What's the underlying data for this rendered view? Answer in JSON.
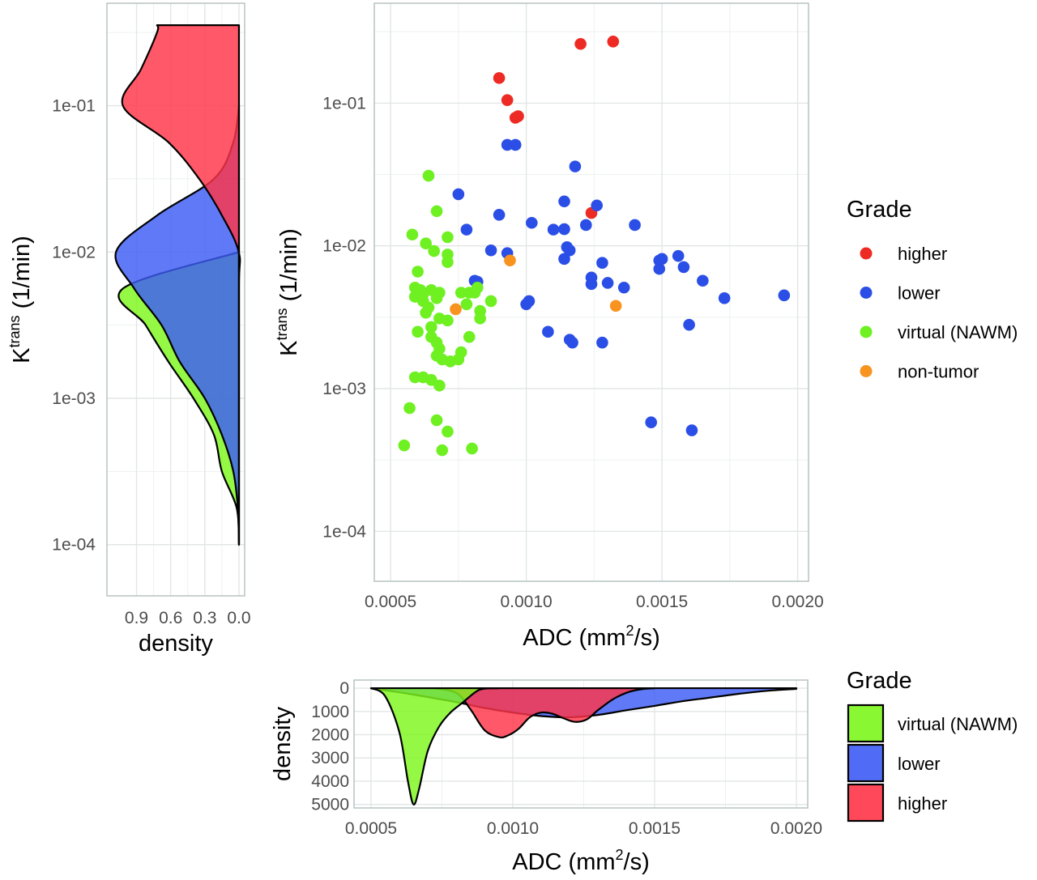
{
  "colors": {
    "higher": "#ee2a24",
    "lower": "#2b4fe6",
    "virtual": "#6ef021",
    "non_tumor": "#f7931e",
    "higher_fill": "#ff3548",
    "lower_fill": "#3d5cf5",
    "virtual_fill": "#7cf71c",
    "grid": "#e3e6e6",
    "panel_border": "#b8c2c2"
  },
  "chart_data": [
    {
      "type": "scatter",
      "xlabel": "ADC (mm",
      "xlabel_sup": "2",
      "xlabel_tail": "/s)",
      "ylabel": "K",
      "ylabel_sup": "trans",
      "ylabel_tail": " (1/min)",
      "xlim": [
        0.00044,
        0.00204
      ],
      "ylim_log10": [
        -4.35,
        -0.3
      ],
      "x_ticks": [
        0.0005,
        0.001,
        0.0015,
        0.002
      ],
      "x_tick_labels": [
        "0.0005",
        "0.0010",
        "0.0015",
        "0.0020"
      ],
      "y_ticks": [
        0.1,
        0.01,
        0.001,
        0.0001
      ],
      "y_tick_labels": [
        "1e-01",
        "1e-02",
        "1e-03",
        "1e-04"
      ],
      "grid": true,
      "legend": {
        "title": "Grade",
        "placement": "right",
        "entries": [
          {
            "label": "higher",
            "color_key": "higher"
          },
          {
            "label": "lower",
            "color_key": "lower"
          },
          {
            "label": "virtual (NAWM)",
            "color_key": "virtual"
          },
          {
            "label": "non-tumor",
            "color_key": "non_tumor"
          }
        ]
      },
      "series": [
        {
          "name": "higher",
          "color_key": "higher",
          "points": [
            [
              0.0012,
              0.26
            ],
            [
              0.00132,
              0.27
            ],
            [
              0.0009,
              0.15
            ],
            [
              0.00093,
              0.105
            ],
            [
              0.00096,
              0.079
            ],
            [
              0.00097,
              0.081
            ],
            [
              0.00124,
              0.017
            ]
          ]
        },
        {
          "name": "lower",
          "color_key": "lower",
          "points": [
            [
              0.00093,
              0.051
            ],
            [
              0.00096,
              0.051
            ],
            [
              0.00118,
              0.036
            ],
            [
              0.00075,
              0.023
            ],
            [
              0.00114,
              0.0205
            ],
            [
              0.00126,
              0.0192
            ],
            [
              0.0009,
              0.0165
            ],
            [
              0.00102,
              0.0145
            ],
            [
              0.00122,
              0.014
            ],
            [
              0.0014,
              0.014
            ],
            [
              0.00078,
              0.013
            ],
            [
              0.0011,
              0.013
            ],
            [
              0.00114,
              0.0131
            ],
            [
              0.00115,
              0.0098
            ],
            [
              0.00116,
              0.0093
            ],
            [
              0.00087,
              0.0093
            ],
            [
              0.00093,
              0.0089
            ],
            [
              0.00114,
              0.0081
            ],
            [
              0.00156,
              0.0085
            ],
            [
              0.0015,
              0.0081
            ],
            [
              0.00149,
              0.0079
            ],
            [
              0.00128,
              0.0076
            ],
            [
              0.00149,
              0.0069
            ],
            [
              0.00158,
              0.0071
            ],
            [
              0.00124,
              0.006
            ],
            [
              0.00165,
              0.0057
            ],
            [
              0.00081,
              0.0057
            ],
            [
              0.00082,
              0.0056
            ],
            [
              0.0013,
              0.0055
            ],
            [
              0.00124,
              0.0054
            ],
            [
              0.00136,
              0.0051
            ],
            [
              0.00195,
              0.0045
            ],
            [
              0.00173,
              0.0043
            ],
            [
              0.00101,
              0.0041
            ],
            [
              0.001,
              0.0039
            ],
            [
              0.0016,
              0.0028
            ],
            [
              0.00108,
              0.0025
            ],
            [
              0.00116,
              0.0022
            ],
            [
              0.00117,
              0.0021
            ],
            [
              0.00128,
              0.0021
            ],
            [
              0.00146,
              0.00058
            ],
            [
              0.00161,
              0.00051
            ]
          ]
        },
        {
          "name": "virtual (NAWM)",
          "color_key": "virtual",
          "points": [
            [
              0.00064,
              0.031
            ],
            [
              0.00067,
              0.0175
            ],
            [
              0.00058,
              0.012
            ],
            [
              0.00063,
              0.0104
            ],
            [
              0.00071,
              0.0115
            ],
            [
              0.00066,
              0.0092
            ],
            [
              0.00071,
              0.0087
            ],
            [
              0.00071,
              0.0077
            ],
            [
              0.0006,
              0.0066
            ],
            [
              0.00059,
              0.0051
            ],
            [
              0.00061,
              0.0049
            ],
            [
              0.00065,
              0.0049
            ],
            [
              0.00062,
              0.0046
            ],
            [
              0.00059,
              0.0044
            ],
            [
              0.00068,
              0.0047
            ],
            [
              0.00076,
              0.0047
            ],
            [
              0.00079,
              0.0047
            ],
            [
              0.00082,
              0.0051
            ],
            [
              0.00081,
              0.0047
            ],
            [
              0.00067,
              0.0043
            ],
            [
              0.00062,
              0.0041
            ],
            [
              0.00078,
              0.0039
            ],
            [
              0.00087,
              0.0041
            ],
            [
              0.00064,
              0.0037
            ],
            [
              0.00083,
              0.0035
            ],
            [
              0.00063,
              0.0034
            ],
            [
              0.00083,
              0.0031
            ],
            [
              0.00068,
              0.0031
            ],
            [
              0.00071,
              0.003
            ],
            [
              0.00065,
              0.0027
            ],
            [
              0.0006,
              0.0025
            ],
            [
              0.00065,
              0.0023
            ],
            [
              0.00079,
              0.0023
            ],
            [
              0.00067,
              0.0021
            ],
            [
              0.00068,
              0.0019
            ],
            [
              0.00076,
              0.0018
            ],
            [
              0.00067,
              0.0017
            ],
            [
              0.00075,
              0.0016
            ],
            [
              0.00069,
              0.0016
            ],
            [
              0.00072,
              0.00155
            ],
            [
              0.00059,
              0.0012
            ],
            [
              0.00062,
              0.0012
            ],
            [
              0.00065,
              0.00115
            ],
            [
              0.00068,
              0.00105
            ],
            [
              0.00057,
              0.00073
            ],
            [
              0.00067,
              0.0006
            ],
            [
              0.00071,
              0.0005
            ],
            [
              0.00055,
              0.0004
            ],
            [
              0.00069,
              0.00037
            ],
            [
              0.0008,
              0.00038
            ]
          ]
        },
        {
          "name": "non-tumor",
          "color_key": "non_tumor",
          "points": [
            [
              0.00094,
              0.0079
            ],
            [
              0.00074,
              0.0036
            ],
            [
              0.00133,
              0.0038
            ]
          ]
        }
      ]
    },
    {
      "type": "area",
      "orientation": "vertical",
      "xlabel": "density",
      "x_tick_labels": [
        "0.9",
        "0.6",
        "0.3",
        "0.0"
      ],
      "x_ticks": [
        0.9,
        0.6,
        0.3,
        0.0
      ],
      "xlim_reversed": [
        1.16,
        -0.05
      ],
      "y_tick_labels": [
        "1e-01",
        "1e-02",
        "1e-03",
        "1e-04"
      ],
      "y_ticks": [
        0.1,
        0.01,
        0.001,
        0.0001
      ],
      "ylim_log10": [
        -4.35,
        -0.3
      ],
      "series": [
        {
          "name": "higher",
          "fill_key": "higher_fill",
          "y_log10": [
            -4,
            -3.75,
            -3.5,
            -3.25,
            -2.25,
            -2.0,
            -1.75,
            -1.5,
            -1.25,
            -1.0,
            -0.75,
            -0.5,
            -0.45
          ],
          "density": [
            0,
            0,
            0,
            0,
            0,
            0.002,
            0.15,
            0.35,
            0.62,
            1.02,
            0.86,
            0.72,
            0.72
          ]
        },
        {
          "name": "lower",
          "fill_key": "lower_fill",
          "y_log10": [
            -4,
            -3.75,
            -3.5,
            -3.25,
            -3.0,
            -2.75,
            -2.5,
            -2.25,
            -2.0,
            -1.75,
            -1.5,
            -1.25,
            -1.0
          ],
          "density": [
            0,
            0.01,
            0.05,
            0.15,
            0.3,
            0.52,
            0.68,
            0.92,
            1.08,
            0.72,
            0.22,
            0.05,
            0
          ]
        },
        {
          "name": "virtual (NAWM)",
          "fill_key": "virtual_fill",
          "y_log10": [
            -4,
            -3.75,
            -3.5,
            -3.25,
            -3.0,
            -2.75,
            -2.5,
            -2.25,
            -2.0
          ],
          "density": [
            0,
            0.02,
            0.15,
            0.22,
            0.4,
            0.62,
            0.82,
            1.02,
            0
          ]
        }
      ]
    },
    {
      "type": "area",
      "orientation": "inverted",
      "xlabel": "ADC (mm",
      "xlabel_sup": "2",
      "xlabel_tail": "/s)",
      "ylabel": "density",
      "x_ticks": [
        0.0005,
        0.001,
        0.0015,
        0.002
      ],
      "x_tick_labels": [
        "0.0005",
        "0.0010",
        "0.0015",
        "0.0020"
      ],
      "xlim": [
        0.00044,
        0.00204
      ],
      "y_ticks": [
        0,
        1000,
        2000,
        3000,
        4000,
        5000
      ],
      "y_tick_labels": [
        "0",
        "1000",
        "2000",
        "3000",
        "4000",
        "5000"
      ],
      "ylim": [
        -350,
        5150
      ],
      "legend": {
        "title": "Grade",
        "placement": "right",
        "entries": [
          {
            "label": "virtual (NAWM)",
            "fill_key": "virtual_fill"
          },
          {
            "label": "lower",
            "fill_key": "lower_fill"
          },
          {
            "label": "higher",
            "fill_key": "higher_fill"
          }
        ]
      },
      "series": [
        {
          "name": "virtual (NAWM)",
          "fill_key": "virtual_fill",
          "x": [
            0.0005,
            0.00055,
            0.0006,
            0.00063,
            0.00065,
            0.00067,
            0.0007,
            0.00074,
            0.00078,
            0.00082,
            0.00087,
            0.0009,
            0.00095
          ],
          "y": [
            0,
            350,
            1900,
            4000,
            5000,
            4300,
            2700,
            1650,
            1050,
            650,
            150,
            20,
            0
          ]
        },
        {
          "name": "lower",
          "fill_key": "lower_fill",
          "x": [
            0.0005,
            0.0006,
            0.0007,
            0.0008,
            0.0009,
            0.001,
            0.0011,
            0.0012,
            0.0013,
            0.0014,
            0.0015,
            0.0016,
            0.0017,
            0.0018,
            0.0019,
            0.002
          ],
          "y": [
            0,
            180,
            380,
            600,
            850,
            1050,
            1200,
            1250,
            1150,
            950,
            760,
            560,
            400,
            240,
            110,
            30
          ]
        },
        {
          "name": "higher",
          "fill_key": "higher_fill",
          "x": [
            0.00072,
            0.0008,
            0.00085,
            0.0009,
            0.00095,
            0.00098,
            0.00102,
            0.00106,
            0.0011,
            0.00114,
            0.00118,
            0.00122,
            0.00126,
            0.0013,
            0.00135,
            0.0014,
            0.00145,
            0.0015
          ],
          "y": [
            0,
            200,
            900,
            1800,
            2100,
            2050,
            1750,
            1250,
            1050,
            1100,
            1300,
            1450,
            1350,
            950,
            500,
            200,
            50,
            0
          ]
        }
      ]
    }
  ]
}
